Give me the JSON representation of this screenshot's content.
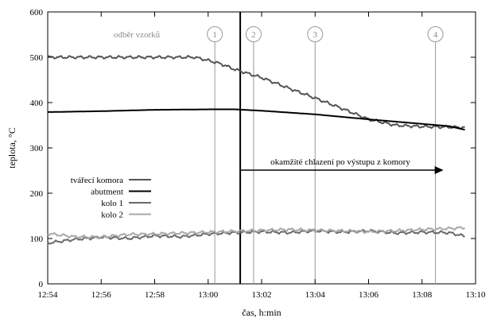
{
  "chart_data": {
    "type": "line",
    "xlabel": "čas, h:min",
    "ylabel": "teplota, °C",
    "xlim_minutes": [
      0,
      16
    ],
    "ylim": [
      0,
      600
    ],
    "x_tick_labels": [
      "12:54",
      "12:56",
      "12:58",
      "13:00",
      "13:02",
      "13:04",
      "13:06",
      "13:08",
      "13:10"
    ],
    "y_ticks": [
      0,
      100,
      200,
      300,
      400,
      500,
      600
    ],
    "grid": false,
    "legend_position": "lower-left",
    "sampling_label": "odběr vzorků",
    "sample_markers": [
      {
        "label": "1",
        "x": "13:00:15"
      },
      {
        "label": "2",
        "x": "13:01:42"
      },
      {
        "label": "3",
        "x": "13:04:00"
      },
      {
        "label": "4",
        "x": "13:08:30"
      }
    ],
    "event": {
      "x": "13:01:12",
      "text": "okamžité chlazení po výstupu z komory",
      "arrow_to": "13:08:48"
    },
    "series": [
      {
        "name": "tvářecí komora",
        "color": "#555555",
        "x": [
          "12:54",
          "12:56",
          "12:58",
          "12:59:30",
          "13:00",
          "13:00:30",
          "13:01",
          "13:02",
          "13:03",
          "13:04",
          "13:05",
          "13:06",
          "13:07",
          "13:08",
          "13:09",
          "13:09:36"
        ],
        "y": [
          500,
          500,
          500,
          500,
          493,
          485,
          473,
          455,
          432,
          410,
          387,
          363,
          350,
          347,
          346,
          345
        ],
        "wavy": true
      },
      {
        "name": "abutment",
        "color": "#000000",
        "x": [
          "12:54",
          "12:56",
          "12:58",
          "13:00",
          "13:01",
          "13:02",
          "13:04",
          "13:06",
          "13:08",
          "13:09",
          "13:09:36"
        ],
        "y": [
          379,
          381,
          384,
          385,
          385,
          382,
          374,
          363,
          353,
          348,
          340
        ]
      },
      {
        "name": "kolo 1",
        "color": "#6a6a6a",
        "x": [
          "12:54",
          "12:55",
          "12:56",
          "12:57",
          "12:58",
          "12:59",
          "13:00",
          "13:01",
          "13:02",
          "13:03",
          "13:04",
          "13:05",
          "13:06",
          "13:07",
          "13:08",
          "13:09",
          "13:09:36"
        ],
        "y": [
          90,
          98,
          103,
          100,
          106,
          104,
          110,
          113,
          115,
          113,
          117,
          114,
          117,
          112,
          114,
          113,
          105
        ],
        "wavy": true
      },
      {
        "name": "kolo 2",
        "color": "#a8a8a8",
        "x": [
          "12:54",
          "12:55",
          "12:56",
          "12:57",
          "12:58",
          "12:59",
          "13:00",
          "13:01",
          "13:02",
          "13:03",
          "13:04",
          "13:05",
          "13:06",
          "13:07",
          "13:08",
          "13:09",
          "13:09:36"
        ],
        "y": [
          111,
          104,
          103,
          109,
          110,
          112,
          114,
          116,
          118,
          120,
          118,
          117,
          115,
          117,
          120,
          122,
          124
        ],
        "wavy": true
      }
    ]
  }
}
